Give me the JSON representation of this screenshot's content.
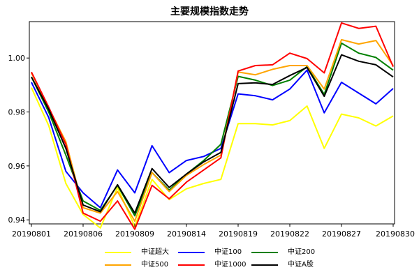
{
  "chart_data": {
    "type": "line",
    "title": "主要规模指数走势",
    "xlabel": "",
    "ylabel": "",
    "x": [
      "20190801",
      "20190802",
      "20190805",
      "20190806",
      "20190807",
      "20190808",
      "20190809",
      "20190812",
      "20190813",
      "20190814",
      "20190815",
      "20190816",
      "20190819",
      "20190820",
      "20190821",
      "20190822",
      "20190823",
      "20190826",
      "20190827",
      "20190828",
      "20190829",
      "20190830"
    ],
    "x_tick_labels": [
      "20190801",
      "20190806",
      "20190809",
      "20190814",
      "20190819",
      "20190822",
      "20190827",
      "20190830"
    ],
    "x_tick_indices": [
      0,
      3,
      6,
      9,
      12,
      15,
      18,
      21
    ],
    "ylim": [
      0.9385,
      1.0135
    ],
    "y_ticks": [
      0.94,
      0.96,
      0.98,
      1.0
    ],
    "y_tick_labels": [
      "0.94",
      "0.96",
      "0.98",
      "1.00"
    ],
    "grid": false,
    "legend_position": "bottom",
    "series": [
      {
        "name": "中证超大",
        "color": "#ffff00",
        "values": [
          0.989,
          0.975,
          0.9535,
          0.942,
          0.937,
          0.952,
          0.9375,
          0.955,
          0.9475,
          0.9515,
          0.9535,
          0.955,
          0.9757,
          0.9757,
          0.9752,
          0.9768,
          0.9822,
          0.9665,
          0.9792,
          0.9778,
          0.9748,
          0.9785
        ]
      },
      {
        "name": "中证100",
        "color": "#0000ff",
        "values": [
          0.991,
          0.978,
          0.958,
          0.95,
          0.9445,
          0.9585,
          0.95,
          0.9675,
          0.9575,
          0.962,
          0.9635,
          0.9665,
          0.9867,
          0.986,
          0.9845,
          0.9885,
          0.9955,
          0.9797,
          0.991,
          0.987,
          0.983,
          0.9887
        ]
      },
      {
        "name": "中证200",
        "color": "#008000",
        "values": [
          0.993,
          0.98,
          0.964,
          0.947,
          0.9435,
          0.9528,
          0.9415,
          0.9575,
          0.951,
          0.957,
          0.962,
          0.968,
          0.9932,
          0.9918,
          0.9898,
          0.9918,
          0.9968,
          0.9865,
          1.0055,
          1.0018,
          1.0002,
          0.9955
        ]
      },
      {
        "name": "中证500",
        "color": "#ffa500",
        "values": [
          0.9945,
          0.9815,
          0.969,
          0.9445,
          0.9425,
          0.9505,
          0.9395,
          0.9575,
          0.9505,
          0.9565,
          0.9605,
          0.964,
          0.9948,
          0.9938,
          0.9958,
          0.9972,
          0.9972,
          0.9885,
          1.0068,
          1.0052,
          1.0065,
          0.9972
        ]
      },
      {
        "name": "中证1000",
        "color": "#ff0000",
        "values": [
          0.9948,
          0.9818,
          0.968,
          0.9425,
          0.9395,
          0.947,
          0.9365,
          0.9528,
          0.9478,
          0.954,
          0.9585,
          0.963,
          0.9952,
          0.9972,
          0.9975,
          1.0018,
          0.9998,
          0.9945,
          1.013,
          1.011,
          1.0118,
          0.9968
        ]
      },
      {
        "name": "中证A股",
        "color": "#000000",
        "values": [
          0.993,
          0.981,
          0.9665,
          0.9455,
          0.943,
          0.953,
          0.9425,
          0.959,
          0.952,
          0.957,
          0.9615,
          0.965,
          0.9905,
          0.9908,
          0.9902,
          0.9935,
          0.9965,
          0.9858,
          1.0012,
          0.9988,
          0.9975,
          0.993
        ]
      }
    ]
  }
}
